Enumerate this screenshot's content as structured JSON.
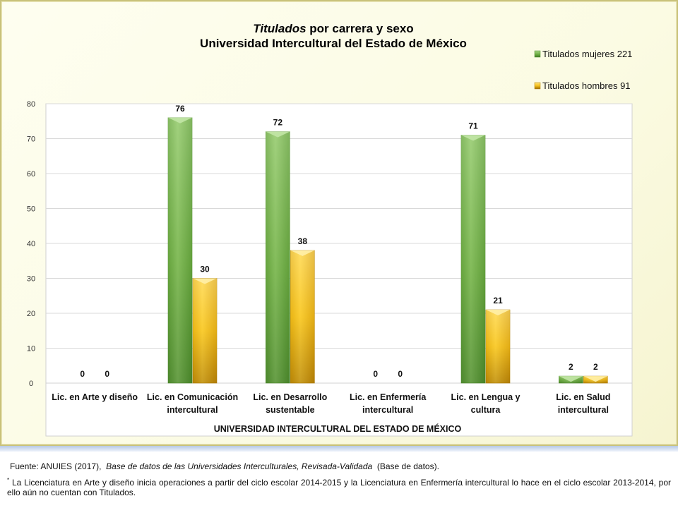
{
  "chart_data": {
    "type": "bar",
    "title_italic": "Titulados",
    "title_rest": " por carrera y sexo",
    "subtitle": "Universidad Intercultural del Estado de México",
    "xlabel": "UNIVERSIDAD INTERCULTURAL DEL ESTADO DE MÉXICO",
    "ylabel": "",
    "ylim": [
      0,
      80
    ],
    "yticks": [
      0,
      10,
      20,
      30,
      40,
      50,
      60,
      70,
      80
    ],
    "grid": true,
    "legend_position": "top-right",
    "categories": [
      [
        "Lic. en Arte y diseño"
      ],
      [
        "Lic. en Comunicación",
        "intercultural"
      ],
      [
        "Lic. en Desarrollo",
        "sustentable"
      ],
      [
        "Lic. en Enfermería",
        "intercultural"
      ],
      [
        "Lic. en Lengua y",
        "cultura"
      ],
      [
        "Lic. en Salud",
        "intercultural"
      ]
    ],
    "series": [
      {
        "name": "Titulados mujeres 221",
        "color": "#7cb84e",
        "values": [
          0,
          76,
          72,
          0,
          71,
          2
        ]
      },
      {
        "name": "Titulados hombres 91",
        "color": "#f5c21c",
        "values": [
          0,
          30,
          38,
          0,
          21,
          2
        ]
      }
    ]
  },
  "footer": {
    "source_prefix": "Fuente: ANUIES (2017),",
    "source_italic": "Base de datos de las Universidades Interculturales, Revisada-Validada",
    "source_suffix": "(Base de datos).",
    "note_mark": "*",
    "note_text": "La Licenciatura en Arte y diseño inicia operaciones a partir del ciclo escolar 2014-2015 y la Licenciatura en Enfermería intercultural lo hace en el ciclo escolar 2013-2014, por ello aún no cuentan con Titulados."
  }
}
